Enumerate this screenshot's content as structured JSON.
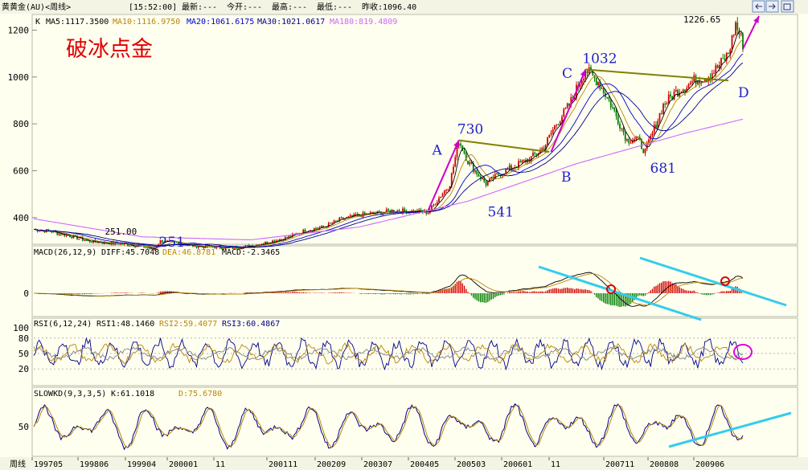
{
  "header": {
    "title": "黄黄金(AU)<周线>",
    "time": "[15:52:00]",
    "latest": "最新:---",
    "open": "今开:---",
    "high": "最高:---",
    "low": "最低:---",
    "prev_close": "昨收:1096.40"
  },
  "colors": {
    "background": "#FFFFF0",
    "up": "#d40000",
    "down": "#008000",
    "ma5": "#000000",
    "ma10": "#b8860b",
    "ma20": "#0000cd",
    "ma30": "#00008b",
    "ma180": "#cc66ff",
    "annotation_blue": "#1e1ecc",
    "trend_cyan": "#33ccee",
    "arrow_magenta": "#cc00cc",
    "neckline_olive": "#808000"
  },
  "chart_data": [
    {
      "type": "candlestick",
      "panel": "K",
      "title": "破冰点金",
      "indicator_labels": [
        {
          "key": "ma5",
          "text": "MA5:1117.3500"
        },
        {
          "key": "ma10",
          "text": "MA10:1116.9750"
        },
        {
          "key": "ma20",
          "text": "MA20:1061.6175"
        },
        {
          "key": "ma30",
          "text": "MA30:1021.0617"
        },
        {
          "key": "ma180",
          "text": "MA180:819.4809"
        }
      ],
      "y_ticks": [
        400,
        600,
        800,
        1000,
        1200
      ],
      "ylim": [
        300,
        1260
      ],
      "x_ticks": [
        "199705",
        "199806",
        "199904",
        "200001",
        "11",
        "200111",
        "200209",
        "200307",
        "200405",
        "200503",
        "200601",
        "11",
        "200711",
        "200808",
        "200906"
      ],
      "x_axis_label": "周线",
      "price_path": [
        [
          0,
          350
        ],
        [
          10,
          340
        ],
        [
          20,
          322
        ],
        [
          30,
          300
        ],
        [
          40,
          292
        ],
        [
          50,
          287
        ],
        [
          60,
          278
        ],
        [
          66,
          263
        ],
        [
          70,
          300
        ],
        [
          80,
          290
        ],
        [
          90,
          278
        ],
        [
          100,
          274
        ],
        [
          110,
          270
        ],
        [
          120,
          280
        ],
        [
          130,
          296
        ],
        [
          140,
          315
        ],
        [
          150,
          345
        ],
        [
          160,
          360
        ],
        [
          170,
          393
        ],
        [
          180,
          410
        ],
        [
          190,
          420
        ],
        [
          200,
          430
        ],
        [
          210,
          426
        ],
        [
          218,
          423
        ],
        [
          230,
          545
        ],
        [
          235,
          730
        ],
        [
          240,
          640
        ],
        [
          246,
          580
        ],
        [
          250,
          545
        ],
        [
          258,
          590
        ],
        [
          266,
          620
        ],
        [
          275,
          655
        ],
        [
          282,
          700
        ],
        [
          288,
          790
        ],
        [
          296,
          880
        ],
        [
          305,
          1032
        ],
        [
          312,
          980
        ],
        [
          318,
          900
        ],
        [
          324,
          800
        ],
        [
          328,
          730
        ],
        [
          333,
          740
        ],
        [
          338,
          681
        ],
        [
          342,
          760
        ],
        [
          348,
          880
        ],
        [
          354,
          930
        ],
        [
          360,
          960
        ],
        [
          366,
          990
        ],
        [
          372,
          1000
        ],
        [
          378,
          1040
        ],
        [
          384,
          1100
        ],
        [
          388,
          1226
        ],
        [
          392,
          1140
        ]
      ],
      "ma_paths": {
        "ma180": [
          [
            0,
            395
          ],
          [
            60,
            318
          ],
          [
            120,
            305
          ],
          [
            180,
            360
          ],
          [
            240,
            470
          ],
          [
            300,
            630
          ],
          [
            360,
            760
          ],
          [
            392,
            820
          ]
        ]
      },
      "annotations": [
        {
          "text": "251.00",
          "x": 66,
          "y": 251,
          "kind": "price"
        },
        {
          "text": "251",
          "x": 70,
          "y": 251,
          "kind": "label"
        },
        {
          "text": "A",
          "x": 230,
          "y": 690,
          "kind": "point"
        },
        {
          "text": "730",
          "x": 235,
          "y": 730,
          "kind": "price"
        },
        {
          "text": "541",
          "x": 250,
          "y": 541,
          "kind": "price"
        },
        {
          "text": "B",
          "x": 288,
          "y": 630,
          "kind": "point"
        },
        {
          "text": "C",
          "x": 300,
          "y": 1010,
          "kind": "point"
        },
        {
          "text": "1032",
          "x": 305,
          "y": 1032,
          "kind": "price"
        },
        {
          "text": "681",
          "x": 338,
          "y": 681,
          "kind": "price"
        },
        {
          "text": "D",
          "x": 394,
          "y": 930,
          "kind": "point"
        },
        {
          "text": "1226.65",
          "x": 388,
          "y": 1226,
          "kind": "price"
        }
      ],
      "necklines": [
        {
          "from": [
            235,
            730
          ],
          "to": [
            285,
            680
          ]
        },
        {
          "from": [
            305,
            1032
          ],
          "to": [
            384,
            985
          ]
        }
      ]
    },
    {
      "type": "histogram",
      "panel": "MACD",
      "indicator_labels": [
        {
          "key": "macd_title",
          "text": "MACD(26,12,9)"
        },
        {
          "key": "diff",
          "text": "DIFF:45.7048"
        },
        {
          "key": "dea",
          "text": "DEA:46.8781"
        },
        {
          "key": "macd",
          "text": "MACD:-2.3465"
        }
      ],
      "y_ticks": [
        0
      ],
      "ylim": [
        -70,
        70
      ]
    },
    {
      "type": "line",
      "panel": "RSI",
      "indicator_labels": [
        {
          "key": "rsi_title",
          "text": "RSI(6,12,24)"
        },
        {
          "key": "rsi1",
          "text": "RSI1:48.1460"
        },
        {
          "key": "rsi2",
          "text": "RSI2:59.4077"
        },
        {
          "key": "rsi3",
          "text": "RSI3:60.4867"
        }
      ],
      "y_ticks": [
        20,
        50,
        80,
        100
      ],
      "ylim": [
        0,
        100
      ]
    },
    {
      "type": "line",
      "panel": "SLOWKD",
      "indicator_labels": [
        {
          "key": "kd_title",
          "text": "SLOWKD(9,3,3,5)"
        },
        {
          "key": "k",
          "text": "K:61.1018"
        },
        {
          "key": "d",
          "text": "D:75.6780"
        }
      ],
      "y_ticks": [
        50
      ],
      "ylim": [
        0,
        100
      ]
    }
  ],
  "controls": {
    "nav_left_icon": "arrow-left-icon",
    "nav_right_icon": "arrow-right-icon",
    "restore_icon": "window-restore-icon"
  }
}
